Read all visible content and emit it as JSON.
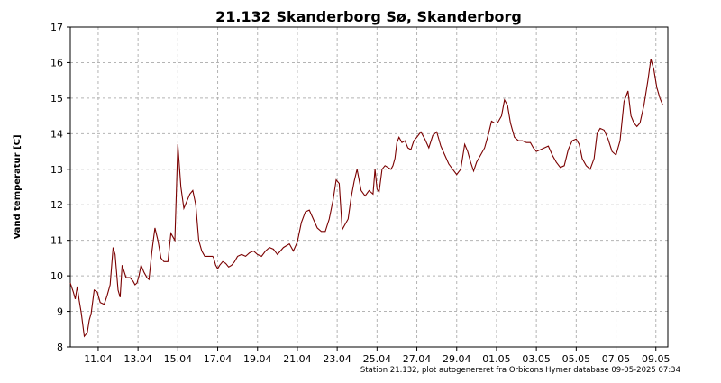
{
  "chart_data": {
    "type": "line",
    "title": "21.132  Skanderborg Sø, Skanderborg",
    "ylabel": "Vand temperatur [C]",
    "xlabel": "",
    "footer": "Station 21.132, plot autogenereret fra Orbicons Hymer database 09-05-2025 07:34",
    "ylim": [
      8,
      17
    ],
    "xlim_days": [
      9.6,
      39.6
    ],
    "grid": true,
    "line_color": "#7a0000",
    "y_ticks": [
      {
        "value": 8,
        "label": "8"
      },
      {
        "value": 9,
        "label": "9"
      },
      {
        "value": 10,
        "label": "10"
      },
      {
        "value": 11,
        "label": "11"
      },
      {
        "value": 12,
        "label": "12"
      },
      {
        "value": 13,
        "label": "13"
      },
      {
        "value": 14,
        "label": "14"
      },
      {
        "value": 15,
        "label": "15"
      },
      {
        "value": 16,
        "label": "16"
      },
      {
        "value": 17,
        "label": "17"
      }
    ],
    "x_ticks": [
      {
        "day": 11,
        "label": "11.04"
      },
      {
        "day": 13,
        "label": "13.04"
      },
      {
        "day": 15,
        "label": "15.04"
      },
      {
        "day": 17,
        "label": "17.04"
      },
      {
        "day": 19,
        "label": "19.04"
      },
      {
        "day": 21,
        "label": "21.04"
      },
      {
        "day": 23,
        "label": "23.04"
      },
      {
        "day": 25,
        "label": "25.04"
      },
      {
        "day": 27,
        "label": "27.04"
      },
      {
        "day": 29,
        "label": "29.04"
      },
      {
        "day": 31,
        "label": "01.05"
      },
      {
        "day": 33,
        "label": "03.05"
      },
      {
        "day": 35,
        "label": "05.05"
      },
      {
        "day": 37,
        "label": "07.05"
      },
      {
        "day": 39,
        "label": "09.05"
      }
    ],
    "series": [
      {
        "name": "",
        "x": [
          9.6,
          9.75,
          9.85,
          9.95,
          10.05,
          10.15,
          10.3,
          10.45,
          10.55,
          10.65,
          10.8,
          10.95,
          11.1,
          11.3,
          11.45,
          11.6,
          11.75,
          11.85,
          12.0,
          12.1,
          12.2,
          12.4,
          12.6,
          12.75,
          12.85,
          12.95,
          13.05,
          13.15,
          13.3,
          13.45,
          13.55,
          13.7,
          13.85,
          14.0,
          14.15,
          14.3,
          14.5,
          14.65,
          14.85,
          15.0,
          15.15,
          15.3,
          15.45,
          15.6,
          15.75,
          15.9,
          16.05,
          16.2,
          16.35,
          16.5,
          16.6,
          16.7,
          16.75,
          16.8,
          16.85,
          16.9,
          17.0,
          17.1,
          17.25,
          17.4,
          17.55,
          17.7,
          17.85,
          18.0,
          18.2,
          18.4,
          18.6,
          18.8,
          19.0,
          19.2,
          19.4,
          19.6,
          19.8,
          20.0,
          20.3,
          20.6,
          20.8,
          21.0,
          21.2,
          21.4,
          21.6,
          21.8,
          22.0,
          22.2,
          22.4,
          22.6,
          22.8,
          22.95,
          23.1,
          23.25,
          23.4,
          23.55,
          23.7,
          23.85,
          24.0,
          24.2,
          24.4,
          24.6,
          24.8,
          24.9,
          25.0,
          25.1,
          25.25,
          25.4,
          25.55,
          25.7,
          25.8,
          25.9,
          26.0,
          26.1,
          26.25,
          26.4,
          26.55,
          26.7,
          26.85,
          27.0,
          27.2,
          27.4,
          27.6,
          27.8,
          28.0,
          28.2,
          28.4,
          28.6,
          28.8,
          29.0,
          29.2,
          29.4,
          29.55,
          29.7,
          29.85,
          30.0,
          30.2,
          30.4,
          30.6,
          30.75,
          30.9,
          31.05,
          31.25,
          31.4,
          31.55,
          31.7,
          31.9,
          32.1,
          32.3,
          32.5,
          32.7,
          32.85,
          33.0,
          33.2,
          33.4,
          33.6,
          33.8,
          34.0,
          34.2,
          34.4,
          34.6,
          34.8,
          35.0,
          35.15,
          35.3,
          35.5,
          35.7,
          35.9,
          36.05,
          36.2,
          36.4,
          36.6,
          36.8,
          37.0,
          37.2,
          37.4,
          37.6,
          37.75,
          37.9,
          38.05,
          38.2,
          38.4,
          38.6,
          38.75,
          38.9,
          39.05,
          39.2,
          39.35
        ],
        "values": [
          9.8,
          9.55,
          9.35,
          9.7,
          9.3,
          8.95,
          8.3,
          8.4,
          8.75,
          8.95,
          9.6,
          9.55,
          9.25,
          9.2,
          9.45,
          9.75,
          10.8,
          10.6,
          9.6,
          9.4,
          10.3,
          9.95,
          9.95,
          9.85,
          9.75,
          9.8,
          10.0,
          10.3,
          10.1,
          9.95,
          9.9,
          10.7,
          11.35,
          11.0,
          10.5,
          10.4,
          10.4,
          11.2,
          11.0,
          13.7,
          12.5,
          11.9,
          12.1,
          12.3,
          12.4,
          12.0,
          11.0,
          10.7,
          10.55,
          10.55,
          10.55,
          10.55,
          10.55,
          10.5,
          10.4,
          10.3,
          10.2,
          10.3,
          10.4,
          10.35,
          10.25,
          10.3,
          10.4,
          10.55,
          10.6,
          10.55,
          10.65,
          10.7,
          10.6,
          10.55,
          10.7,
          10.8,
          10.75,
          10.6,
          10.8,
          10.9,
          10.7,
          10.95,
          11.5,
          11.8,
          11.85,
          11.6,
          11.35,
          11.25,
          11.25,
          11.6,
          12.15,
          12.7,
          12.6,
          11.3,
          11.45,
          11.6,
          12.2,
          12.65,
          13.0,
          12.4,
          12.25,
          12.4,
          12.3,
          13.0,
          12.45,
          12.35,
          13.0,
          13.1,
          13.05,
          13.0,
          13.1,
          13.3,
          13.75,
          13.9,
          13.75,
          13.8,
          13.6,
          13.55,
          13.8,
          13.9,
          14.05,
          13.85,
          13.6,
          13.95,
          14.05,
          13.65,
          13.4,
          13.15,
          13.0,
          12.85,
          13.0,
          13.7,
          13.5,
          13.2,
          12.95,
          13.2,
          13.4,
          13.6,
          14.0,
          14.35,
          14.3,
          14.3,
          14.5,
          14.95,
          14.8,
          14.3,
          13.9,
          13.8,
          13.8,
          13.75,
          13.75,
          13.6,
          13.5,
          13.55,
          13.6,
          13.65,
          13.4,
          13.2,
          13.05,
          13.1,
          13.55,
          13.8,
          13.85,
          13.7,
          13.3,
          13.1,
          13.0,
          13.3,
          14.0,
          14.15,
          14.1,
          13.85,
          13.5,
          13.4,
          13.8,
          14.9,
          15.2,
          14.5,
          14.3,
          14.2,
          14.3,
          14.8,
          15.5,
          16.1,
          15.8,
          15.3,
          15.0,
          14.8
        ]
      }
    ]
  }
}
